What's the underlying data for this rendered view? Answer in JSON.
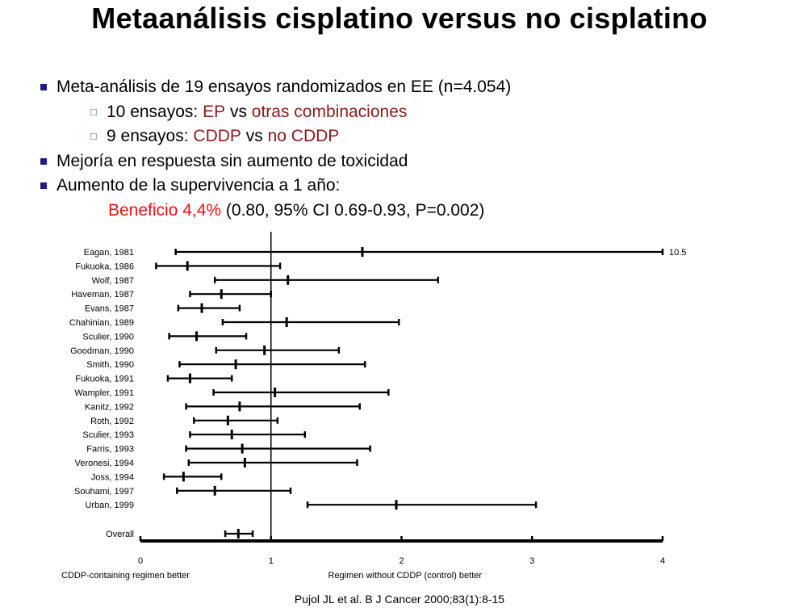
{
  "slide": {
    "title": "Metaanálisis cisplatino versus no cisplatino",
    "bullet1": "Meta-análisis de 19 ensayos randomizados en EE (n=4.054)",
    "sub1": {
      "prefix": "10 ensayos: ",
      "a": "EP",
      "mid": " vs ",
      "b": "otras combinaciones"
    },
    "sub2": {
      "prefix": "9 ensayos: ",
      "a": "CDDP",
      "mid": " vs ",
      "b": "no CDDP"
    },
    "bullet2": "Mejoría en respuesta sin aumento de toxicidad",
    "bullet3": "Aumento de la supervivencia a 1 año:",
    "benefit": {
      "highlight": "Beneficio 4,4%",
      "rest": " (0.80, 95% CI 0.69-0.93, P=0.002)"
    },
    "citation": "Pujol JL et al.  B J Cancer 2000;83(1):8-15",
    "colors": {
      "bullet_square": "#1a1a8c",
      "accent_dark_red": "#8b1a1a",
      "accent_red": "#ee1111"
    }
  },
  "chart_data": {
    "type": "forest",
    "xlim": [
      0,
      4
    ],
    "xticks": [
      "0",
      "1",
      "2",
      "3",
      "4"
    ],
    "xlabel_left": "CDDP-containing regimen better",
    "xlabel_right": "Regimen without CDDP (control) better",
    "reference_line": 1,
    "studies": [
      {
        "label": "Eagan, 1981",
        "est": 1.7,
        "lo": 0.27,
        "hi": 4.0,
        "hi_label": "10.5"
      },
      {
        "label": "Fukuoka, 1986",
        "est": 0.36,
        "lo": 0.12,
        "hi": 1.07
      },
      {
        "label": "Wolf, 1987",
        "est": 1.13,
        "lo": 0.57,
        "hi": 2.28
      },
      {
        "label": "Haveman, 1987",
        "est": 0.62,
        "lo": 0.38,
        "hi": 1.0
      },
      {
        "label": "Evans, 1987",
        "est": 0.47,
        "lo": 0.29,
        "hi": 0.76
      },
      {
        "label": "Chahinian, 1989",
        "est": 1.12,
        "lo": 0.63,
        "hi": 1.98
      },
      {
        "label": "Sculier, 1990",
        "est": 0.43,
        "lo": 0.22,
        "hi": 0.81
      },
      {
        "label": "Goodman, 1990",
        "est": 0.95,
        "lo": 0.58,
        "hi": 1.52
      },
      {
        "label": "Smith, 1990",
        "est": 0.73,
        "lo": 0.3,
        "hi": 1.72
      },
      {
        "label": "Fukuoka, 1991",
        "est": 0.38,
        "lo": 0.21,
        "hi": 0.7
      },
      {
        "label": "Wampler, 1991",
        "est": 1.03,
        "lo": 0.56,
        "hi": 1.9
      },
      {
        "label": "Kanitz, 1992",
        "est": 0.76,
        "lo": 0.35,
        "hi": 1.68
      },
      {
        "label": "Roth, 1992",
        "est": 0.67,
        "lo": 0.41,
        "hi": 1.05
      },
      {
        "label": "Sculier, 1993",
        "est": 0.7,
        "lo": 0.38,
        "hi": 1.26
      },
      {
        "label": "Farris, 1993",
        "est": 0.78,
        "lo": 0.35,
        "hi": 1.76
      },
      {
        "label": "Veronesi, 1994",
        "est": 0.8,
        "lo": 0.37,
        "hi": 1.66
      },
      {
        "label": "Joss, 1994",
        "est": 0.33,
        "lo": 0.18,
        "hi": 0.62
      },
      {
        "label": "Souhami, 1997",
        "est": 0.57,
        "lo": 0.28,
        "hi": 1.15
      },
      {
        "label": "Urban, 1999",
        "est": 1.96,
        "lo": 1.28,
        "hi": 3.03
      }
    ],
    "overall": {
      "label": "Overall",
      "est": 0.75,
      "lo": 0.65,
      "hi": 0.86
    }
  }
}
